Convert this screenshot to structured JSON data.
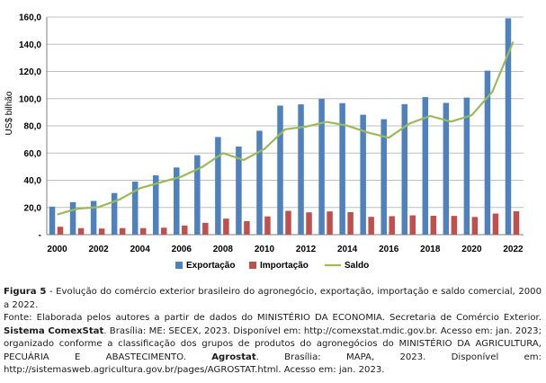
{
  "chart_data": {
    "type": "bar",
    "title": "",
    "xlabel": "",
    "ylabel": "US$ bilhão",
    "ylim": [
      0,
      160
    ],
    "yticks": [
      "-",
      "20,0",
      "40,0",
      "60,0",
      "80,0",
      "100,0",
      "120,0",
      "140,0",
      "160,0"
    ],
    "xticks": [
      "2000",
      "2002",
      "2004",
      "2006",
      "2008",
      "2010",
      "2012",
      "2014",
      "2016",
      "2018",
      "2020",
      "2022"
    ],
    "grid": true,
    "legend_position": "bottom",
    "categories": [
      "2000",
      "2001",
      "2002",
      "2003",
      "2004",
      "2005",
      "2006",
      "2007",
      "2008",
      "2009",
      "2010",
      "2011",
      "2012",
      "2013",
      "2014",
      "2015",
      "2016",
      "2017",
      "2018",
      "2019",
      "2020",
      "2021",
      "2022"
    ],
    "series": [
      {
        "name": "Exportação",
        "type": "bar",
        "color": "#4f81bd",
        "values": [
          20.6,
          23.9,
          24.8,
          30.6,
          39.0,
          43.6,
          49.4,
          58.4,
          71.8,
          64.8,
          76.4,
          94.9,
          95.8,
          99.9,
          96.7,
          88.2,
          84.9,
          96.0,
          101.2,
          96.9,
          100.8,
          120.6,
          159.1
        ]
      },
      {
        "name": "Importação",
        "type": "bar",
        "color": "#c0504d",
        "values": [
          5.8,
          4.8,
          4.5,
          4.8,
          4.8,
          5.1,
          6.7,
          8.7,
          11.8,
          9.9,
          13.4,
          17.5,
          16.4,
          17.1,
          16.6,
          13.1,
          13.6,
          14.2,
          13.9,
          13.8,
          13.0,
          15.5,
          17.2
        ]
      },
      {
        "name": "Saldo",
        "type": "line",
        "color": "#9bbb59",
        "values": [
          14.8,
          19.1,
          20.3,
          25.8,
          34.2,
          38.5,
          42.7,
          49.7,
          60.0,
          54.9,
          63.0,
          77.5,
          79.4,
          82.9,
          80.1,
          75.1,
          71.3,
          81.8,
          87.3,
          83.1,
          87.8,
          105.1,
          141.9
        ]
      }
    ]
  },
  "caption": {
    "figure_label": "Figura 5",
    "figure_text": " - Evolução do comércio exterior brasileiro do agronegócio, exportação, importação e saldo comercial, 2000 a 2022.",
    "source_prefix": "Fonte: Elaborada pelos autores a partir de dados do MINISTÉRIO DA ECONOMIA. Secretaria de Comércio Exterior. ",
    "source_bold_1": "Sistema ComexStat",
    "source_mid": ". Brasília: ME: SECEX, 2023. Disponível em: http://comexstat.mdic.gov.br. Acesso em: jan. 2023; organizado conforme a classificação dos grupos de produtos do agronegócios do MINISTÉRIO DA AGRICULTURA, PECUÁRIA E ABASTECIMENTO. ",
    "source_bold_2": "Agrostat",
    "source_end": ". Brasília: MAPA, 2023. Disponível em: http://sistemasweb.agricultura.gov.br/pages/AGROSTAT.html. Acesso em: jan. 2023."
  }
}
